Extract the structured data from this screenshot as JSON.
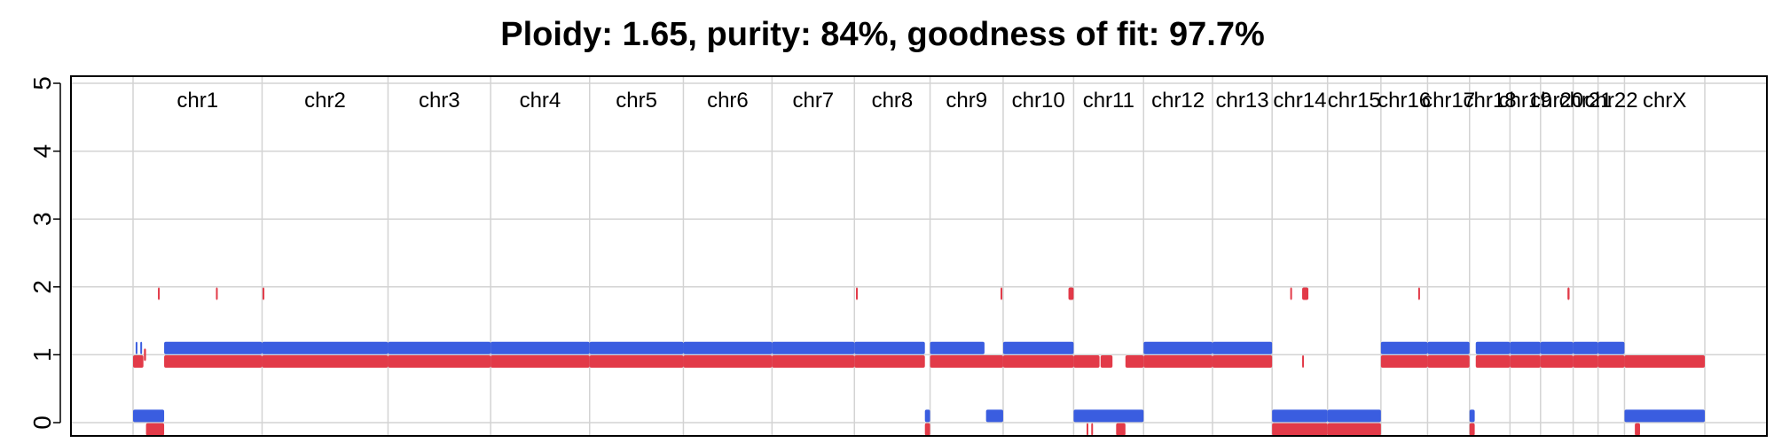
{
  "chart_data": {
    "type": "scatter",
    "title": "Ploidy: 1.65, purity: 84%, goodness of fit: 97.7%",
    "xlabel": "",
    "ylabel": "",
    "ylim": [
      0,
      5
    ],
    "y_ticks": [
      "0",
      "1",
      "2",
      "3",
      "4",
      "5"
    ],
    "grid": true,
    "colors": {
      "major": "#e23a48",
      "minor": "#3a5de0",
      "grid": "#d3d3d3",
      "axis": "#000000"
    },
    "chromosomes": [
      {
        "name": "chr1",
        "length": 249
      },
      {
        "name": "chr2",
        "length": 243
      },
      {
        "name": "chr3",
        "length": 198
      },
      {
        "name": "chr4",
        "length": 191
      },
      {
        "name": "chr5",
        "length": 181
      },
      {
        "name": "chr6",
        "length": 171
      },
      {
        "name": "chr7",
        "length": 159
      },
      {
        "name": "chr8",
        "length": 146
      },
      {
        "name": "chr9",
        "length": 141
      },
      {
        "name": "chr10",
        "length": 136
      },
      {
        "name": "chr11",
        "length": 135
      },
      {
        "name": "chr12",
        "length": 133
      },
      {
        "name": "chr13",
        "length": 115
      },
      {
        "name": "chr14",
        "length": 107
      },
      {
        "name": "chr15",
        "length": 103
      },
      {
        "name": "chr16",
        "length": 90
      },
      {
        "name": "chr17",
        "length": 81
      },
      {
        "name": "chr18",
        "length": 78
      },
      {
        "name": "chr19",
        "length": 59
      },
      {
        "name": "chr20",
        "length": 63
      },
      {
        "name": "chr21",
        "length": 48
      },
      {
        "name": "chr22",
        "length": 51
      },
      {
        "name": "chrX",
        "length": 155
      }
    ],
    "series": [
      {
        "key": "major",
        "segments": [
          {
            "chr": "chr1",
            "start": 0,
            "end": 20,
            "cn": 0.9
          },
          {
            "chr": "chr1",
            "start": 21,
            "end": 25,
            "cn": 1.0
          },
          {
            "chr": "chr1",
            "start": 25,
            "end": 60,
            "cn": -0.1
          },
          {
            "chr": "chr1",
            "start": 60,
            "end": 249,
            "cn": 0.9
          },
          {
            "chr": "chr1",
            "start": 48,
            "end": 49,
            "cn": 1.9
          },
          {
            "chr": "chr1",
            "start": 160,
            "end": 161,
            "cn": 1.9
          },
          {
            "chr": "chr2",
            "start": 0,
            "end": 243,
            "cn": 0.9
          },
          {
            "chr": "chr2",
            "start": 1,
            "end": 2,
            "cn": 1.9
          },
          {
            "chr": "chr3",
            "start": 0,
            "end": 198,
            "cn": 0.9
          },
          {
            "chr": "chr4",
            "start": 0,
            "end": 191,
            "cn": 0.9
          },
          {
            "chr": "chr5",
            "start": 0,
            "end": 181,
            "cn": 0.9
          },
          {
            "chr": "chr6",
            "start": 0,
            "end": 171,
            "cn": 0.9
          },
          {
            "chr": "chr7",
            "start": 0,
            "end": 159,
            "cn": 0.9
          },
          {
            "chr": "chr8",
            "start": 0,
            "end": 136,
            "cn": 0.9
          },
          {
            "chr": "chr8",
            "start": 136,
            "end": 146,
            "cn": -0.1
          },
          {
            "chr": "chr8",
            "start": 3,
            "end": 4,
            "cn": 1.9
          },
          {
            "chr": "chr9",
            "start": 0,
            "end": 141,
            "cn": 0.9
          },
          {
            "chr": "chr9",
            "start": 136,
            "end": 137,
            "cn": 1.9
          },
          {
            "chr": "chr10",
            "start": 0,
            "end": 136,
            "cn": 0.9
          },
          {
            "chr": "chr10",
            "start": 126,
            "end": 136,
            "cn": 1.9
          },
          {
            "chr": "chr11",
            "start": 0,
            "end": 50,
            "cn": 0.9
          },
          {
            "chr": "chr11",
            "start": 52,
            "end": 75,
            "cn": 0.9
          },
          {
            "chr": "chr11",
            "start": 25,
            "end": 27,
            "cn": -0.1
          },
          {
            "chr": "chr11",
            "start": 34,
            "end": 36,
            "cn": -0.1
          },
          {
            "chr": "chr11",
            "start": 82,
            "end": 100,
            "cn": -0.1
          },
          {
            "chr": "chr11",
            "start": 100,
            "end": 135,
            "cn": 0.9
          },
          {
            "chr": "chr12",
            "start": 0,
            "end": 133,
            "cn": 0.9
          },
          {
            "chr": "chr13",
            "start": 0,
            "end": 115,
            "cn": 0.9
          },
          {
            "chr": "chr14",
            "start": 0,
            "end": 107,
            "cn": -0.1
          },
          {
            "chr": "chr14",
            "start": 35,
            "end": 38,
            "cn": 1.9
          },
          {
            "chr": "chr14",
            "start": 58,
            "end": 61,
            "cn": 0.9
          },
          {
            "chr": "chr14",
            "start": 58,
            "end": 70,
            "cn": 1.9
          },
          {
            "chr": "chr15",
            "start": 0,
            "end": 103,
            "cn": -0.1
          },
          {
            "chr": "chr16",
            "start": 0,
            "end": 90,
            "cn": 0.9
          },
          {
            "chr": "chr16",
            "start": 72,
            "end": 74,
            "cn": 1.9
          },
          {
            "chr": "chr17",
            "start": 0,
            "end": 81,
            "cn": 0.9
          },
          {
            "chr": "chr18",
            "start": 0,
            "end": 10,
            "cn": -0.1
          },
          {
            "chr": "chr18",
            "start": 12,
            "end": 78,
            "cn": 0.9
          },
          {
            "chr": "chr19",
            "start": 0,
            "end": 59,
            "cn": 0.9
          },
          {
            "chr": "chr20",
            "start": 0,
            "end": 63,
            "cn": 0.9
          },
          {
            "chr": "chr20",
            "start": 52,
            "end": 56,
            "cn": 1.9
          },
          {
            "chr": "chr21",
            "start": 0,
            "end": 48,
            "cn": 0.9
          },
          {
            "chr": "chr22",
            "start": 0,
            "end": 51,
            "cn": 0.9
          },
          {
            "chrX": true,
            "chr": "chrX",
            "start": 0,
            "end": 155,
            "cn": 0.9
          },
          {
            "chr": "chrX",
            "start": 20,
            "end": 30,
            "cn": -0.1
          }
        ]
      },
      {
        "key": "minor",
        "segments": [
          {
            "chr": "chr1",
            "start": 0,
            "end": 60,
            "cn": 0.1
          },
          {
            "chr": "chr1",
            "start": 60,
            "end": 249,
            "cn": 1.1
          },
          {
            "chr": "chr1",
            "start": 5,
            "end": 6,
            "cn": 1.1
          },
          {
            "chr": "chr1",
            "start": 14,
            "end": 15,
            "cn": 1.1
          },
          {
            "chr": "chr2",
            "start": 0,
            "end": 243,
            "cn": 1.1
          },
          {
            "chr": "chr3",
            "start": 0,
            "end": 198,
            "cn": 1.1
          },
          {
            "chr": "chr4",
            "start": 0,
            "end": 191,
            "cn": 1.1
          },
          {
            "chr": "chr5",
            "start": 0,
            "end": 181,
            "cn": 1.1
          },
          {
            "chr": "chr6",
            "start": 0,
            "end": 171,
            "cn": 1.1
          },
          {
            "chr": "chr7",
            "start": 0,
            "end": 159,
            "cn": 1.1
          },
          {
            "chr": "chr8",
            "start": 0,
            "end": 136,
            "cn": 1.1
          },
          {
            "chr": "chr8",
            "start": 136,
            "end": 146,
            "cn": 0.1
          },
          {
            "chr": "chr9",
            "start": 0,
            "end": 105,
            "cn": 1.1
          },
          {
            "chr": "chr9",
            "start": 108,
            "end": 141,
            "cn": 0.1
          },
          {
            "chr": "chr10",
            "start": 0,
            "end": 136,
            "cn": 1.1
          },
          {
            "chr": "chr11",
            "start": 0,
            "end": 135,
            "cn": 0.1
          },
          {
            "chr": "chr12",
            "start": 0,
            "end": 133,
            "cn": 1.1
          },
          {
            "chr": "chr13",
            "start": 0,
            "end": 115,
            "cn": 1.1
          },
          {
            "chr": "chr14",
            "start": 0,
            "end": 107,
            "cn": 0.1
          },
          {
            "chr": "chr15",
            "start": 0,
            "end": 103,
            "cn": 0.1
          },
          {
            "chr": "chr16",
            "start": 0,
            "end": 90,
            "cn": 1.1
          },
          {
            "chr": "chr17",
            "start": 0,
            "end": 81,
            "cn": 1.1
          },
          {
            "chr": "chr18",
            "start": 0,
            "end": 10,
            "cn": 0.1
          },
          {
            "chr": "chr18",
            "start": 12,
            "end": 78,
            "cn": 1.1
          },
          {
            "chr": "chr19",
            "start": 0,
            "end": 59,
            "cn": 1.1
          },
          {
            "chr": "chr20",
            "start": 0,
            "end": 63,
            "cn": 1.1
          },
          {
            "chr": "chr21",
            "start": 0,
            "end": 48,
            "cn": 1.1
          },
          {
            "chr": "chr22",
            "start": 0,
            "end": 51,
            "cn": 1.1
          },
          {
            "chr": "chrX",
            "start": 0,
            "end": 155,
            "cn": 0.1
          }
        ]
      }
    ]
  }
}
